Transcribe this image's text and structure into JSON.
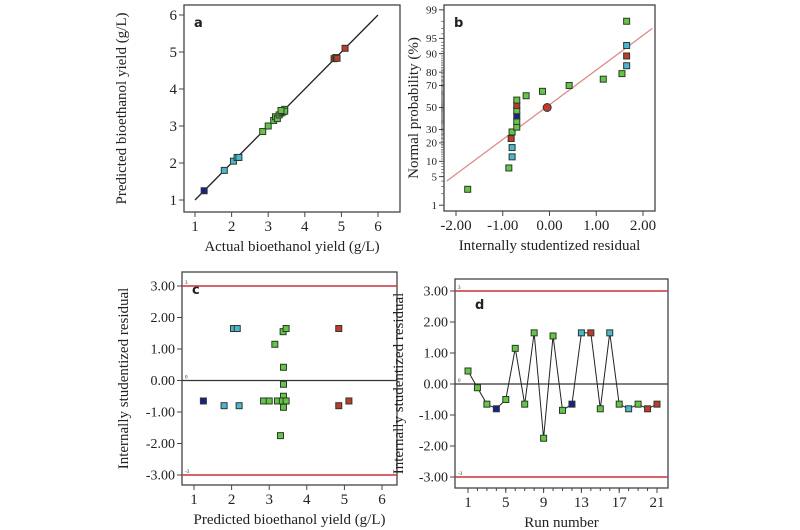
{
  "colors": {
    "green": "#66c447",
    "cyan": "#4cb6d2",
    "navy": "#1b1f8c",
    "red": "#c23a2e",
    "refline": "#c8313a",
    "fitline": "#e08a8a"
  },
  "chart_data": [
    {
      "type": "scatter",
      "panel_label": "a",
      "xlabel": "Actual bioethanol yield (g/L)",
      "ylabel": "Predicted bioethanol yield (g/L)",
      "xlim": [
        1,
        6
      ],
      "ylim": [
        1,
        6
      ],
      "xticks": [
        "1",
        "2",
        "3",
        "4",
        "5",
        "6"
      ],
      "yticks": [
        "1",
        "2",
        "3",
        "4",
        "5",
        "6"
      ],
      "line": {
        "x": [
          1,
          6
        ],
        "y": [
          1,
          6
        ]
      },
      "points": [
        [
          1.25,
          1.25,
          "navy"
        ],
        [
          1.8,
          1.8,
          "cyan"
        ],
        [
          2.05,
          2.05,
          "cyan"
        ],
        [
          2.15,
          2.15,
          "cyan"
        ],
        [
          2.2,
          2.15,
          "cyan"
        ],
        [
          2.85,
          2.85,
          "green"
        ],
        [
          3.0,
          3.0,
          "green"
        ],
        [
          3.15,
          3.15,
          "green"
        ],
        [
          3.2,
          3.25,
          "green"
        ],
        [
          3.25,
          3.2,
          "green"
        ],
        [
          3.3,
          3.3,
          "green"
        ],
        [
          3.35,
          3.35,
          "green"
        ],
        [
          3.4,
          3.4,
          "green"
        ],
        [
          3.45,
          3.45,
          "green"
        ],
        [
          3.4,
          3.38,
          "green"
        ],
        [
          3.45,
          3.4,
          "green"
        ],
        [
          3.35,
          3.42,
          "green"
        ],
        [
          4.8,
          4.82,
          "red"
        ],
        [
          4.85,
          4.85,
          "red"
        ],
        [
          4.88,
          4.83,
          "red"
        ],
        [
          5.1,
          5.1,
          "red"
        ]
      ]
    },
    {
      "type": "scatter",
      "panel_label": "b",
      "xlabel": "Internally studentized residual",
      "ylabel": "Normal probability (%)",
      "yscale": "probit",
      "xlim": [
        -2.2,
        2.2
      ],
      "xticks": [
        "-2.00",
        "-1.00",
        "0.00",
        "1.00",
        "2.00"
      ],
      "yticks": [
        "1",
        "5",
        "10",
        "20",
        "30",
        "50",
        "70",
        "80",
        "90",
        "95",
        "99"
      ],
      "line": {
        "x": [
          -2.2,
          2.2
        ],
        "y": [
          4,
          97
        ]
      },
      "points": [
        [
          -1.75,
          2.6,
          "green"
        ],
        [
          -0.87,
          7.5,
          "green"
        ],
        [
          -0.8,
          12,
          "cyan"
        ],
        [
          -0.8,
          17,
          "cyan"
        ],
        [
          -0.82,
          23,
          "red"
        ],
        [
          -0.8,
          28,
          "green"
        ],
        [
          -0.7,
          32,
          "green"
        ],
        [
          -0.7,
          37,
          "green"
        ],
        [
          -0.7,
          42,
          "navy"
        ],
        [
          -0.7,
          47,
          "green"
        ],
        [
          -0.7,
          52,
          "red"
        ],
        [
          -0.7,
          57,
          "green"
        ],
        [
          -0.5,
          61,
          "green"
        ],
        [
          -0.15,
          65,
          "green"
        ],
        [
          0.42,
          70,
          "green"
        ],
        [
          1.15,
          75,
          "green"
        ],
        [
          1.55,
          79,
          "green"
        ],
        [
          1.65,
          84,
          "cyan"
        ],
        [
          1.65,
          89,
          "red"
        ],
        [
          1.65,
          93,
          "cyan"
        ],
        [
          1.65,
          98,
          "green"
        ]
      ],
      "center_marker": [
        -0.05,
        50
      ]
    },
    {
      "type": "scatter",
      "panel_label": "c",
      "xlabel": "Predicted bioethanol yield (g/L)",
      "ylabel": "Internally studentized residual",
      "xlim": [
        0.9,
        6.2
      ],
      "ylim": [
        -3.4,
        3.4
      ],
      "xticks": [
        "1",
        "2",
        "3",
        "4",
        "5",
        "6"
      ],
      "yticks": [
        "-3.00",
        "-2.00",
        "-1.00",
        "0.00",
        "1.00",
        "2.00",
        "3.00"
      ],
      "limits": [
        3,
        -3
      ],
      "limit_labels": [
        "3",
        "-3"
      ],
      "zero_label": "0",
      "points": [
        [
          1.25,
          -0.65,
          "navy"
        ],
        [
          1.8,
          -0.8,
          "cyan"
        ],
        [
          2.2,
          -0.8,
          "cyan"
        ],
        [
          2.05,
          1.65,
          "cyan"
        ],
        [
          2.15,
          1.65,
          "cyan"
        ],
        [
          2.85,
          -0.65,
          "green"
        ],
        [
          3.0,
          -0.65,
          "green"
        ],
        [
          3.15,
          1.15,
          "green"
        ],
        [
          3.22,
          -0.65,
          "green"
        ],
        [
          3.3,
          -1.75,
          "green"
        ],
        [
          3.37,
          1.55,
          "green"
        ],
        [
          3.45,
          1.65,
          "green"
        ],
        [
          3.38,
          0.42,
          "green"
        ],
        [
          3.38,
          -0.12,
          "green"
        ],
        [
          3.38,
          -0.5,
          "green"
        ],
        [
          3.35,
          -0.65,
          "green"
        ],
        [
          3.45,
          -0.65,
          "green"
        ],
        [
          3.38,
          -0.85,
          "green"
        ],
        [
          4.85,
          1.65,
          "red"
        ],
        [
          4.85,
          -0.8,
          "red"
        ],
        [
          5.12,
          -0.65,
          "red"
        ]
      ]
    },
    {
      "type": "line",
      "panel_label": "d",
      "xlabel": "Run number",
      "ylabel": "Internally studentized residual",
      "xlim": [
        0,
        22.2
      ],
      "ylim": [
        -3.4,
        3.4
      ],
      "xticks": [
        "1",
        "5",
        "9",
        "13",
        "17",
        "21"
      ],
      "yticks": [
        "-3.00",
        "-2.00",
        "-1.00",
        "0.00",
        "1.00",
        "2.00",
        "3.00"
      ],
      "limits": [
        3,
        -3
      ],
      "limit_labels": [
        "3",
        "-3"
      ],
      "zero_label": "0",
      "x": [
        1,
        2,
        3,
        4,
        5,
        6,
        7,
        8,
        9,
        10,
        11,
        12,
        13,
        14,
        15,
        16,
        17,
        18,
        19,
        20,
        21
      ],
      "y": [
        0.42,
        -0.12,
        -0.65,
        -0.8,
        -0.5,
        1.15,
        -0.65,
        1.65,
        -1.75,
        1.55,
        -0.85,
        -0.65,
        1.65,
        1.65,
        -0.8,
        1.65,
        -0.65,
        -0.8,
        -0.65,
        -0.8,
        -0.65
      ],
      "point_colors": [
        "green",
        "green",
        "green",
        "navy",
        "green",
        "green",
        "green",
        "green",
        "green",
        "green",
        "green",
        "navy",
        "cyan",
        "red",
        "green",
        "cyan",
        "green",
        "cyan",
        "green",
        "red",
        "red"
      ]
    }
  ]
}
